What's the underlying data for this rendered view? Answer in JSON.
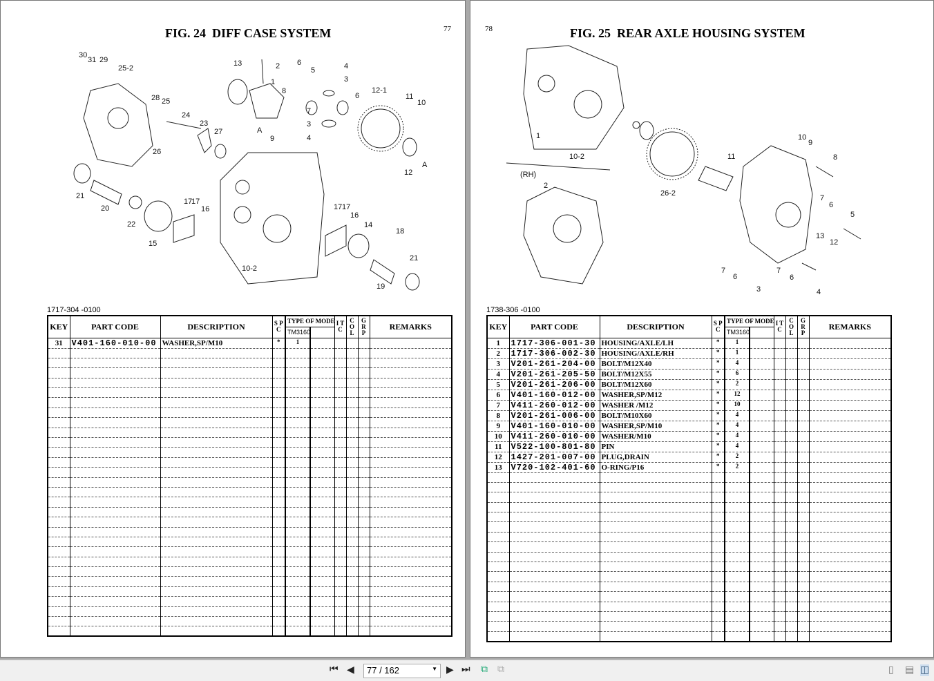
{
  "left": {
    "page_number": "77",
    "title": "FIG. 24  DIFF CASE SYSTEM",
    "doc_no": "1717-304 -0100",
    "callouts": [
      "30",
      "31",
      "29",
      "25-2",
      "28",
      "25",
      "24",
      "26",
      "23",
      "27",
      "13",
      "2",
      "1",
      "8",
      "6",
      "5",
      "4",
      "3",
      "7",
      "3",
      "4",
      "6",
      "12-1",
      "11",
      "10",
      "9",
      "12",
      "A",
      "A",
      "21",
      "20",
      "22",
      "15",
      "17",
      "17",
      "16",
      "10-2",
      "17",
      "17",
      "16",
      "14",
      "18",
      "21",
      "19"
    ],
    "rows": [
      {
        "key": "31",
        "part": "V401-160-010-00",
        "desc": "WASHER,SP/M10",
        "spc": "*",
        "qty": "1"
      }
    ]
  },
  "right": {
    "page_number": "78",
    "title": "FIG. 25  REAR AXLE HOUSING SYSTEM",
    "doc_no": "1738-306 -0100",
    "callouts": [
      "10-2",
      "26-2",
      "1",
      "10",
      "9",
      "8",
      "11",
      "(RH)",
      "2",
      "7",
      "6",
      "5",
      "13",
      "12",
      "7",
      "6",
      "3",
      "7",
      "6",
      "4"
    ],
    "rows": [
      {
        "key": "1",
        "part": "1717-306-001-30",
        "desc": "HOUSING/AXLE/LH",
        "spc": "*",
        "qty": "1"
      },
      {
        "key": "2",
        "part": "1717-306-002-30",
        "desc": "HOUSING/AXLE/RH",
        "spc": "*",
        "qty": "1"
      },
      {
        "key": "3",
        "part": "V201-261-204-00",
        "desc": "BOLT/M12X40",
        "spc": "*",
        "qty": "4"
      },
      {
        "key": "4",
        "part": "V201-261-205-50",
        "desc": "BOLT/M12X55",
        "spc": "*",
        "qty": "6"
      },
      {
        "key": "5",
        "part": "V201-261-206-00",
        "desc": "BOLT/M12X60",
        "spc": "*",
        "qty": "2"
      },
      {
        "key": "6",
        "part": "V401-160-012-00",
        "desc": "WASHER,SP/M12",
        "spc": "*",
        "qty": "12"
      },
      {
        "key": "7",
        "part": "V411-260-012-00",
        "desc": "WASHER /M12",
        "spc": "*",
        "qty": "10"
      },
      {
        "key": "8",
        "part": "V201-261-006-00",
        "desc": "BOLT/M10X60",
        "spc": "*",
        "qty": "4"
      },
      {
        "key": "9",
        "part": "V401-160-010-00",
        "desc": "WASHER,SP/M10",
        "spc": "*",
        "qty": "4"
      },
      {
        "key": "10",
        "part": "V411-260-010-00",
        "desc": "WASHER/M10",
        "spc": "*",
        "qty": "4"
      },
      {
        "key": "11",
        "part": "V522-100-801-80",
        "desc": "PIN",
        "spc": "*",
        "qty": "4"
      },
      {
        "key": "12",
        "part": "1427-201-007-00",
        "desc": "PLUG,DRAIN",
        "spc": "*",
        "qty": "2"
      },
      {
        "key": "13",
        "part": "V720-102-401-60",
        "desc": "O-RING/P16",
        "spc": "*",
        "qty": "2"
      }
    ]
  },
  "table_headers": {
    "key": "KEY",
    "part": "PART CODE",
    "desc": "DESCRIPTION",
    "spc": "S P C",
    "type": "TYPE OF MODEL",
    "model": "TM3160",
    "itc": "I T C",
    "col": "C O L",
    "grp": "G R P",
    "remarks": "REMARKS"
  },
  "toolbar": {
    "page_field": "77 / 162",
    "icons": [
      "first-page-icon",
      "prev-page-icon",
      "next-page-icon",
      "last-page-icon",
      "back-view-icon",
      "forward-view-icon",
      "single-page-icon",
      "continuous-icon",
      "two-page-icon"
    ]
  }
}
